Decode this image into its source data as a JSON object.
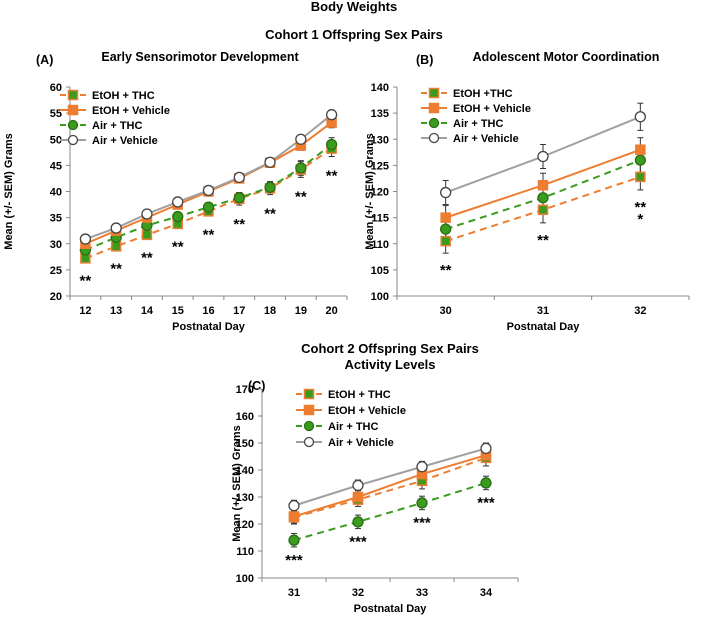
{
  "figure": {
    "title": "Body Weights",
    "cohort1_title": "Cohort 1 Offspring Sex Pairs",
    "cohort2_title_line1": "Cohort 2 Offspring Sex Pairs",
    "cohort2_title_line2": "Activity Levels"
  },
  "colors": {
    "orange": "#ed7d31",
    "green": "#3b9b1f",
    "gray": "#a0a0a0",
    "axis": "#888888"
  },
  "chart_data": [
    {
      "id": "A",
      "type": "line",
      "panel_label": "(A)",
      "title": "Early Sensorimotor Development",
      "xlabel": "Postnatal Day",
      "ylabel": "Mean (+/- SEM) Grams",
      "categories": [
        "12",
        "13",
        "14",
        "15",
        "16",
        "17",
        "18",
        "19",
        "20"
      ],
      "ylim": [
        20,
        60
      ],
      "yticks": [
        20,
        25,
        30,
        35,
        40,
        45,
        50,
        55,
        60
      ],
      "legend_labels": [
        "EtOH + THC",
        "EtOH + Vehicle",
        "Air + THC",
        "Air + Vehicle"
      ],
      "series": [
        {
          "name": "EtOH + THC",
          "values": [
            27.2,
            29.5,
            31.7,
            33.8,
            36.2,
            38.6,
            40.6,
            44.2,
            48.2
          ],
          "errors": [
            0.6,
            0.6,
            0.7,
            0.7,
            0.8,
            1.2,
            1.2,
            1.5,
            1.5
          ]
        },
        {
          "name": "EtOH + Vehicle",
          "values": [
            30.0,
            32.5,
            35.0,
            37.5,
            40.0,
            42.5,
            45.5,
            48.8,
            53.2
          ],
          "errors": [
            0.6,
            0.6,
            0.6,
            0.7,
            0.7,
            0.7,
            0.8,
            0.9,
            1.0
          ]
        },
        {
          "name": "Air + THC",
          "values": [
            28.8,
            31.2,
            33.5,
            35.2,
            37.0,
            38.8,
            40.8,
            44.5,
            49.0
          ],
          "errors": [
            0.6,
            0.6,
            0.7,
            0.7,
            0.8,
            1.0,
            1.1,
            1.4,
            1.3
          ]
        },
        {
          "name": "Air + Vehicle",
          "values": [
            30.9,
            33.0,
            35.7,
            38.0,
            40.2,
            42.7,
            45.6,
            50.0,
            54.7
          ],
          "errors": [
            0.5,
            0.5,
            0.5,
            0.5,
            0.5,
            0.5,
            0.6,
            0.6,
            0.7
          ]
        }
      ],
      "annotations": [
        {
          "x": "12",
          "text": "**"
        },
        {
          "x": "13",
          "text": "**"
        },
        {
          "x": "14",
          "text": "**"
        },
        {
          "x": "15",
          "text": "**"
        },
        {
          "x": "16",
          "text": "**"
        },
        {
          "x": "17",
          "text": "**"
        },
        {
          "x": "18",
          "text": "**"
        },
        {
          "x": "19",
          "text": "**"
        },
        {
          "x": "20",
          "text": "**"
        }
      ]
    },
    {
      "id": "B",
      "type": "line",
      "panel_label": "(B)",
      "title": "Adolescent Motor Coordination",
      "xlabel": "Postnatal Day",
      "ylabel": "Mean (+/- SEM) Grams",
      "categories": [
        "30",
        "31",
        "32"
      ],
      "ylim": [
        100,
        140
      ],
      "yticks": [
        100,
        105,
        110,
        115,
        120,
        125,
        130,
        135,
        140
      ],
      "legend_labels": [
        "EtOH +THC",
        "EtOH + Vehicle",
        "Air +  THC",
        "Air + Vehicle"
      ],
      "series": [
        {
          "name": "EtOH +THC",
          "values": [
            110.5,
            116.5,
            122.8
          ],
          "errors": [
            2.3,
            2.5,
            2.5
          ]
        },
        {
          "name": "EtOH + Vehicle",
          "values": [
            115.0,
            121.2,
            128.0
          ],
          "errors": [
            2.3,
            2.3,
            2.3
          ]
        },
        {
          "name": "Air +  THC",
          "values": [
            112.8,
            118.8,
            126.0
          ],
          "errors": [
            2.3,
            2.3,
            2.3
          ]
        },
        {
          "name": "Air + Vehicle",
          "values": [
            119.8,
            126.7,
            134.3
          ],
          "errors": [
            2.3,
            2.3,
            2.6
          ]
        }
      ],
      "annotations": [
        {
          "x": "30",
          "text": "**",
          "line": 1
        },
        {
          "x": "31",
          "text": "**",
          "line": 1
        },
        {
          "x": "32",
          "text": "**",
          "line": 1
        },
        {
          "x": "32",
          "text": "*",
          "line": 2
        }
      ]
    },
    {
      "id": "C",
      "type": "line",
      "panel_label": "(C)",
      "title": "",
      "xlabel": "Postnatal Day",
      "ylabel": "Mean (+/- SEM) Grams",
      "categories": [
        "31",
        "32",
        "33",
        "34"
      ],
      "ylim": [
        100,
        170
      ],
      "yticks": [
        100,
        110,
        120,
        130,
        140,
        150,
        160,
        170
      ],
      "legend_labels": [
        "EtOH + THC",
        "EtOH + Vehicle",
        "Air + THC",
        "Air + Vehicle"
      ],
      "series": [
        {
          "name": "EtOH + THC",
          "values": [
            122.5,
            129.0,
            136.0,
            144.5
          ],
          "errors": [
            2.5,
            2.5,
            3.0,
            3.0
          ]
        },
        {
          "name": "EtOH + Vehicle",
          "values": [
            122.8,
            130.0,
            138.5,
            145.5
          ],
          "errors": [
            2.5,
            2.5,
            2.5,
            2.5
          ]
        },
        {
          "name": "Air + THC",
          "values": [
            114.0,
            120.8,
            127.8,
            135.2
          ],
          "errors": [
            2.5,
            2.5,
            2.5,
            2.5
          ]
        },
        {
          "name": "Air + Vehicle",
          "values": [
            126.8,
            134.3,
            141.2,
            148.0
          ],
          "errors": [
            2.0,
            2.0,
            2.0,
            2.0
          ]
        }
      ],
      "annotations": [
        {
          "x": "31",
          "text": "***"
        },
        {
          "x": "32",
          "text": "***"
        },
        {
          "x": "33",
          "text": "***"
        },
        {
          "x": "34",
          "text": "***"
        }
      ]
    }
  ]
}
